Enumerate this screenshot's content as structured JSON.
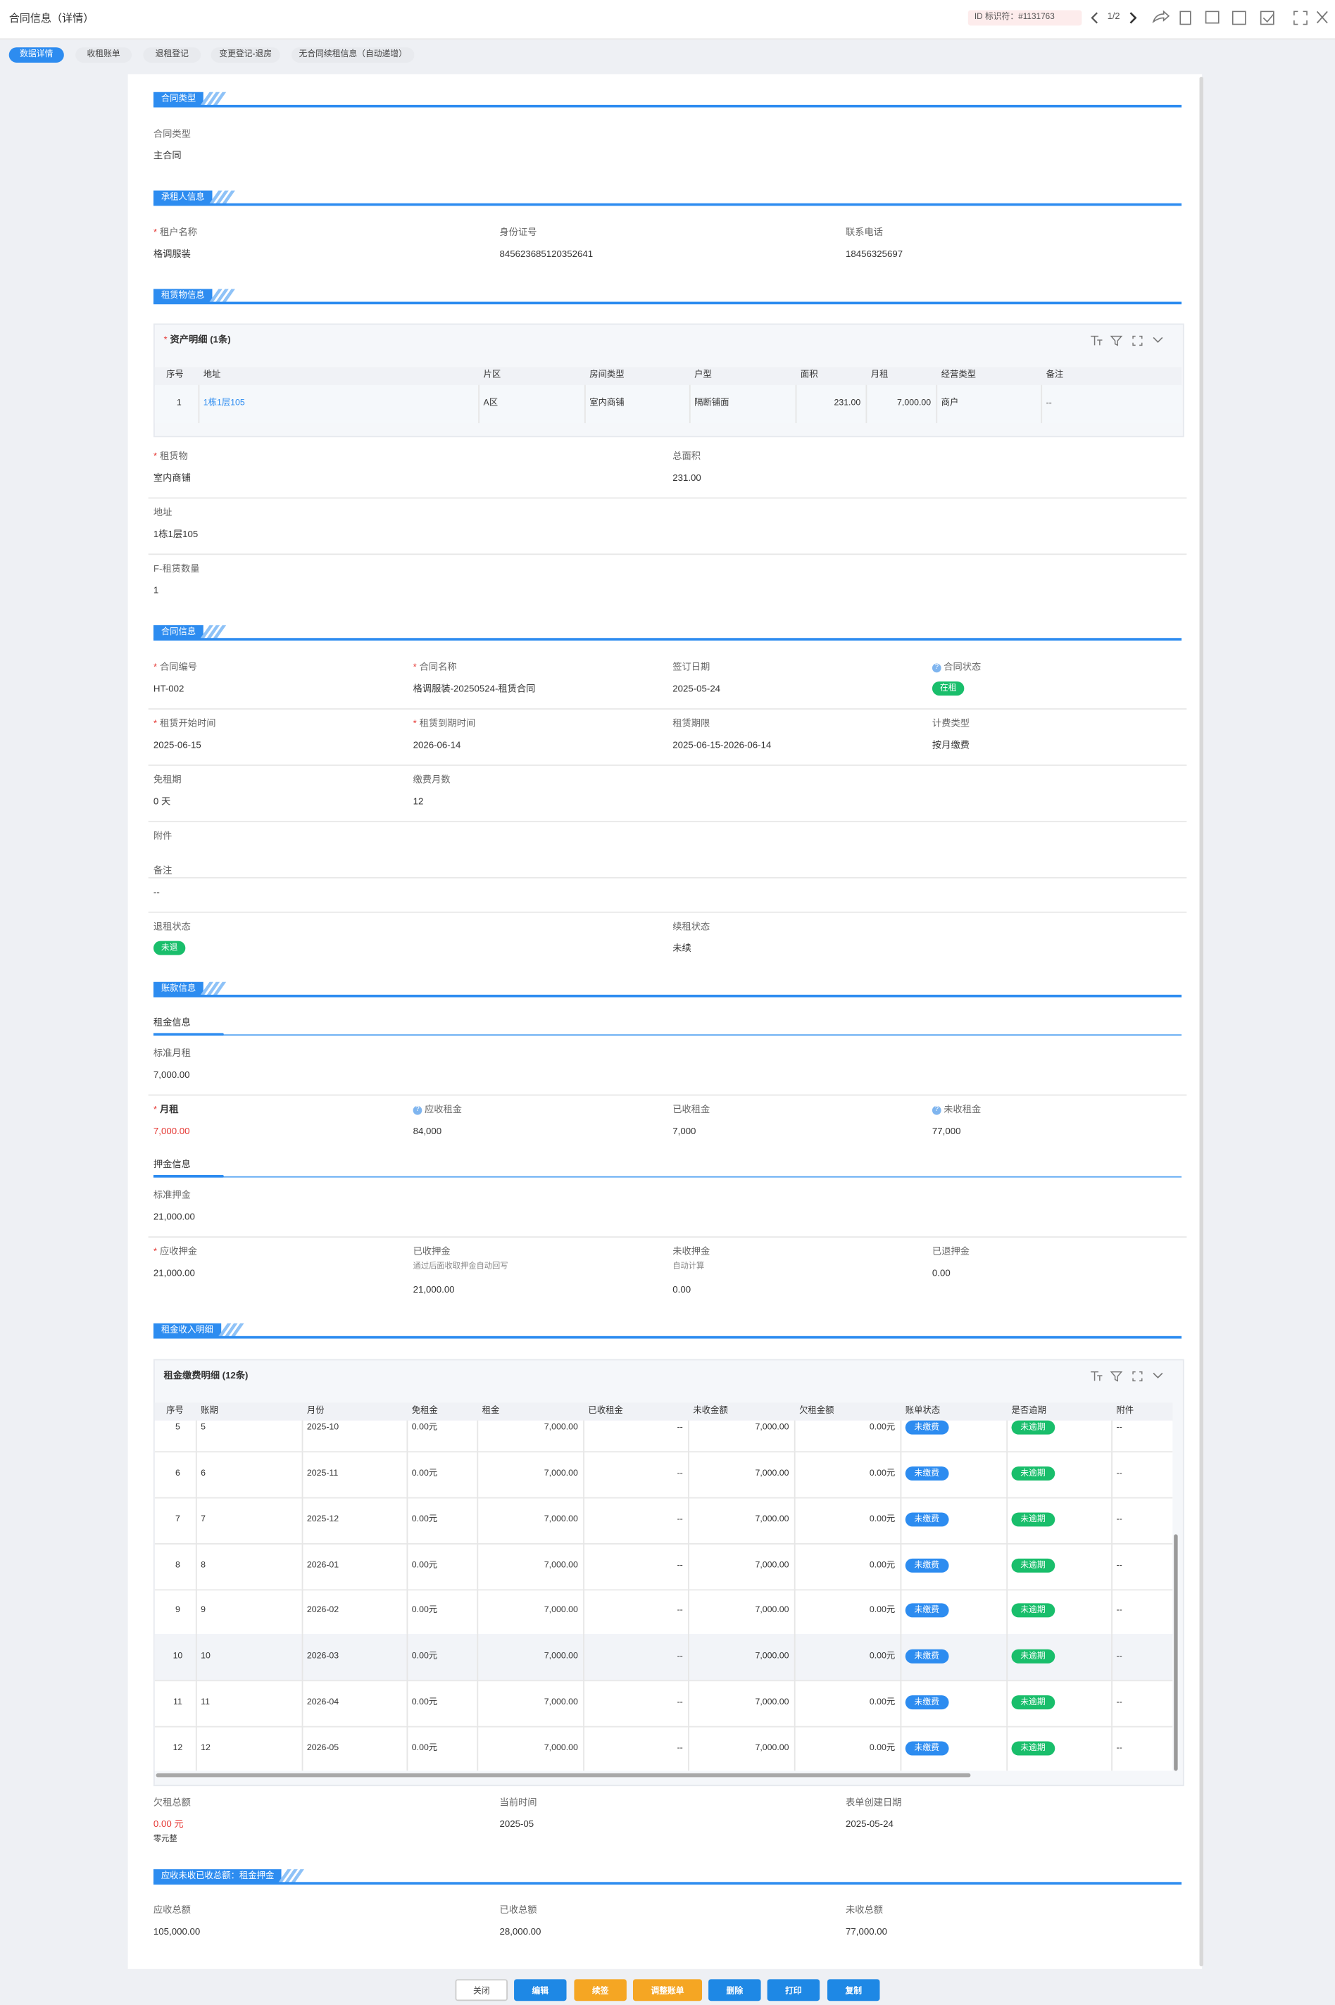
{
  "header": {
    "title": "合同信息（详情）",
    "id_label": "ID 标识符：#1131763",
    "pager": "1/2"
  },
  "required_mark": "*",
  "help_mark": "?",
  "tabs": [
    "数据详情",
    "收租账单",
    "退租登记",
    "变更登记-退房",
    "无合同续租信息（自动递增）"
  ],
  "blocks": [
    {
      "section": "合同类型"
    },
    {
      "fields": [
        {
          "label": "合同类型",
          "value": "主合同"
        }
      ]
    },
    {
      "section": "承租人信息"
    },
    {
      "fields": [
        {
          "label": "租户名称",
          "required": true,
          "value": "格调服装"
        },
        {
          "label": "身份证号",
          "value": "845623685120352641"
        },
        {
          "label": "联系电话",
          "value": "18456325697"
        }
      ]
    },
    {
      "section": "租赁物信息"
    },
    {
      "table": {
        "title": "资产明细 (1条)",
        "required": true,
        "link_color": "#2d8cf0",
        "columns": [
          "序号",
          "地址",
          "片区",
          "房间类型",
          "户型",
          "面积",
          "月租",
          "经营类型",
          "备注"
        ],
        "rows": [
          [
            "1",
            "1栋1层105",
            "A区",
            "室内商铺",
            "隔断铺面",
            "231.00",
            "7,000.00",
            "商户",
            "--"
          ]
        ]
      }
    },
    {
      "fields": [
        {
          "label": "租赁物",
          "required": true,
          "value": "室内商铺"
        },
        {
          "label": "总面积",
          "value": "231.00"
        }
      ]
    },
    {
      "fields": [
        {
          "label": "地址",
          "value": "1栋1层105"
        }
      ]
    },
    {
      "fields": [
        {
          "label": "F-租赁数量",
          "value": "1"
        }
      ]
    },
    {
      "section": "合同信息"
    },
    {
      "fields": [
        {
          "label": "合同编号",
          "required": true,
          "value": "HT-002"
        },
        {
          "label": "合同名称",
          "required": true,
          "value": "格调服装-20250524-租赁合同"
        },
        {
          "label": "签订日期",
          "value": "2025-05-24"
        },
        {
          "label": "合同状态",
          "help": true,
          "value": "在租",
          "badge": "#19be6b"
        }
      ]
    },
    {
      "fields": [
        {
          "label": "租赁开始时间",
          "required": true,
          "value": "2025-06-15"
        },
        {
          "label": "租赁到期时间",
          "required": true,
          "value": "2026-06-14"
        },
        {
          "label": "租赁期限",
          "value": "2025-06-15-2026-06-14"
        },
        {
          "label": "计费类型",
          "value": "按月缴费"
        }
      ]
    },
    {
      "fields": [
        {
          "label": "免租期",
          "value": "0 天"
        },
        {
          "label": "缴费月数",
          "value": "12"
        }
      ]
    },
    {
      "fields": [
        {
          "label": "附件"
        }
      ]
    },
    {
      "fields": [
        {
          "label": "备注",
          "value": "--"
        }
      ]
    },
    {
      "fields": [
        {
          "label": "退租状态",
          "value": "未退",
          "badge": "#19be6b"
        },
        {
          "label": "续租状态",
          "value": "未续"
        }
      ]
    },
    {
      "section": "账款信息"
    },
    {
      "subsection": "租金信息"
    },
    {
      "fields": [
        {
          "label": "标准月租",
          "value": "7,000.00"
        }
      ]
    },
    {
      "fields": [
        {
          "label": "月租",
          "required": true,
          "label_bold": true,
          "value": "7,000.00",
          "value_color": "#e53935"
        },
        {
          "label": "应收租金",
          "help": true,
          "value": "84,000"
        },
        {
          "label": "已收租金",
          "value": "7,000"
        },
        {
          "label": "未收租金",
          "help": true,
          "value": "77,000"
        }
      ]
    },
    {
      "subsection": "押金信息"
    },
    {
      "fields": [
        {
          "label": "标准押金",
          "value": "21,000.00"
        }
      ]
    },
    {
      "fields": [
        {
          "label": "应收押金",
          "required": true,
          "value": "21,000.00"
        },
        {
          "label": "已收押金",
          "hint": "通过后面收取押金自动回写",
          "value": "21,000.00"
        },
        {
          "label": "未收押金",
          "hint": "自动计算",
          "value": "0.00"
        },
        {
          "label": "已退押金",
          "value": "0.00"
        }
      ]
    },
    {
      "section": "租金收入明细"
    },
    {
      "table": {
        "title": "租金缴费明细 (12条)",
        "badge_colors": {
          "账单状态": "#2d8cf0",
          "是否逾期": "#19be6b"
        },
        "columns": [
          "序号",
          "账期",
          "月份",
          "免租金",
          "租金",
          "已收租金",
          "未收金额",
          "欠租金额",
          "账单状态",
          "是否逾期",
          "附件"
        ],
        "rows": [
          [
            "5",
            "5",
            "2025-10",
            "0.00元",
            "7,000.00",
            "--",
            "7,000.00",
            "0.00元",
            "未缴费",
            "未逾期",
            "--"
          ],
          [
            "6",
            "6",
            "2025-11",
            "0.00元",
            "7,000.00",
            "--",
            "7,000.00",
            "0.00元",
            "未缴费",
            "未逾期",
            "--"
          ],
          [
            "7",
            "7",
            "2025-12",
            "0.00元",
            "7,000.00",
            "--",
            "7,000.00",
            "0.00元",
            "未缴费",
            "未逾期",
            "--"
          ],
          [
            "8",
            "8",
            "2026-01",
            "0.00元",
            "7,000.00",
            "--",
            "7,000.00",
            "0.00元",
            "未缴费",
            "未逾期",
            "--"
          ],
          [
            "9",
            "9",
            "2026-02",
            "0.00元",
            "7,000.00",
            "--",
            "7,000.00",
            "0.00元",
            "未缴费",
            "未逾期",
            "--"
          ],
          [
            "10",
            "10",
            "2026-03",
            "0.00元",
            "7,000.00",
            "--",
            "7,000.00",
            "0.00元",
            "未缴费",
            "未逾期",
            "--"
          ],
          [
            "11",
            "11",
            "2026-04",
            "0.00元",
            "7,000.00",
            "--",
            "7,000.00",
            "0.00元",
            "未缴费",
            "未逾期",
            "--"
          ],
          [
            "12",
            "12",
            "2026-05",
            "0.00元",
            "7,000.00",
            "--",
            "7,000.00",
            "0.00元",
            "未缴费",
            "未逾期",
            "--"
          ]
        ]
      }
    },
    {
      "fields": [
        {
          "label": "欠租总额",
          "value": "0.00 元",
          "value_color": "#e53935",
          "note": "零元整"
        },
        {
          "label": "当前时间",
          "value": "2025-05"
        },
        {
          "label": "表单创建日期",
          "value": "2025-05-24"
        }
      ]
    },
    {
      "section": "应收未收已收总额：租金押金"
    },
    {
      "fields": [
        {
          "label": "应收总额",
          "value": "105,000.00"
        },
        {
          "label": "已收总额",
          "value": "28,000.00"
        },
        {
          "label": "未收总额",
          "value": "77,000.00"
        }
      ]
    }
  ],
  "buttons": [
    {
      "label": "关闭",
      "color": "#ffffff"
    },
    {
      "label": "编辑",
      "color": "#1e88e5"
    },
    {
      "label": "续签",
      "color": "#f5a623"
    },
    {
      "label": "调整账单",
      "color": "#f5a623"
    },
    {
      "label": "删除",
      "color": "#1e88e5"
    },
    {
      "label": "打印",
      "color": "#1e88e5"
    },
    {
      "label": "复制",
      "color": "#1e88e5"
    }
  ]
}
